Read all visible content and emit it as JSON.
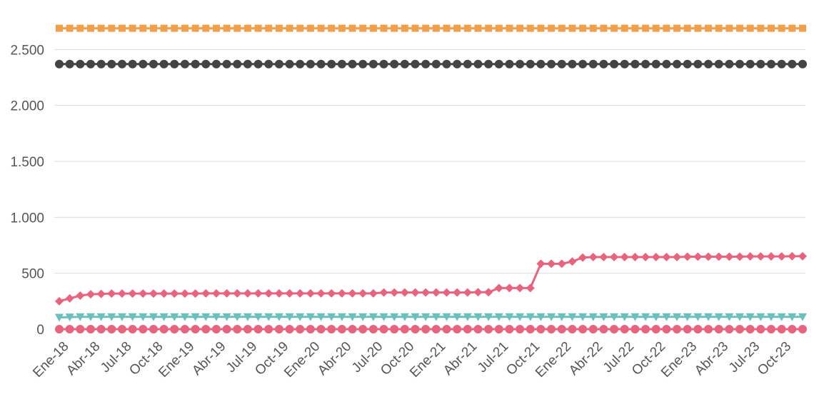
{
  "chart_data": {
    "type": "line",
    "title": "",
    "xlabel": "",
    "ylabel": "",
    "ylim": [
      0,
      2700
    ],
    "yticks": [
      0,
      500,
      1000,
      1500,
      2000,
      2500
    ],
    "ytick_labels": [
      "0",
      "500",
      "1.000",
      "1.500",
      "2.000",
      "2.500"
    ],
    "grid": true,
    "legend": "none",
    "x_start": "Ene-18",
    "x_labels": [
      "Ene-18",
      "Abr-18",
      "Jul-18",
      "Oct-18",
      "Ene-19",
      "Abr-19",
      "Jul-19",
      "Oct-19",
      "Ene-20",
      "Abr-20",
      "Jul-20",
      "Oct-20",
      "Ene-21",
      "Abr-21",
      "Jul-21",
      "Oct-21",
      "Ene-22",
      "Abr-22",
      "Jul-22",
      "Oct-22",
      "Ene-23",
      "Abr-23",
      "Jul-23",
      "Oct-23"
    ],
    "series": [
      {
        "color": "#F0A04B",
        "marker": "square",
        "values": [
          2690,
          2690,
          2690,
          2690,
          2690,
          2690,
          2690,
          2690,
          2690,
          2690,
          2690,
          2690,
          2690,
          2690,
          2690,
          2690,
          2690,
          2690,
          2690,
          2690,
          2690,
          2690,
          2690,
          2690,
          2690,
          2690,
          2690,
          2690,
          2690,
          2690,
          2690,
          2690,
          2690,
          2690,
          2690,
          2690,
          2690,
          2690,
          2690,
          2690,
          2690,
          2690,
          2690,
          2690,
          2690,
          2690,
          2690,
          2690,
          2690,
          2690,
          2690,
          2690,
          2690,
          2690,
          2690,
          2690,
          2690,
          2690,
          2690,
          2690,
          2690,
          2690,
          2690,
          2690,
          2690,
          2690,
          2690,
          2690,
          2690,
          2690,
          2690,
          2690
        ]
      },
      {
        "color": "#444444",
        "marker": "circle",
        "values": [
          2370,
          2370,
          2370,
          2370,
          2370,
          2370,
          2370,
          2370,
          2370,
          2370,
          2370,
          2370,
          2370,
          2370,
          2370,
          2370,
          2370,
          2370,
          2370,
          2370,
          2370,
          2370,
          2370,
          2370,
          2370,
          2370,
          2370,
          2370,
          2370,
          2370,
          2370,
          2370,
          2370,
          2370,
          2370,
          2370,
          2370,
          2370,
          2370,
          2370,
          2370,
          2370,
          2370,
          2370,
          2370,
          2370,
          2370,
          2370,
          2370,
          2370,
          2370,
          2370,
          2370,
          2370,
          2370,
          2370,
          2370,
          2370,
          2370,
          2370,
          2370,
          2370,
          2370,
          2370,
          2370,
          2370,
          2370,
          2370,
          2370,
          2370,
          2370,
          2370
        ]
      },
      {
        "color": "#E8647E",
        "marker": "diamond",
        "values": [
          250,
          275,
          300,
          312,
          315,
          318,
          318,
          318,
          318,
          318,
          318,
          318,
          318,
          318,
          320,
          320,
          320,
          320,
          320,
          320,
          320,
          320,
          320,
          320,
          320,
          320,
          320,
          320,
          320,
          320,
          320,
          328,
          328,
          328,
          328,
          328,
          328,
          328,
          328,
          328,
          330,
          330,
          368,
          368,
          368,
          368,
          585,
          585,
          585,
          605,
          640,
          645,
          645,
          645,
          645,
          645,
          645,
          645,
          645,
          645,
          648,
          648,
          648,
          648,
          648,
          648,
          650,
          650,
          650,
          650,
          652,
          652
        ]
      },
      {
        "color": "#6BBFBD",
        "marker": "triangle-down",
        "values": [
          105,
          108,
          110,
          110,
          110,
          110,
          110,
          110,
          110,
          110,
          110,
          110,
          110,
          110,
          110,
          110,
          110,
          110,
          110,
          110,
          110,
          110,
          110,
          110,
          110,
          110,
          110,
          110,
          110,
          110,
          110,
          110,
          110,
          110,
          110,
          110,
          110,
          110,
          110,
          110,
          110,
          110,
          110,
          110,
          110,
          110,
          110,
          110,
          110,
          110,
          110,
          110,
          110,
          110,
          110,
          110,
          110,
          110,
          110,
          110,
          110,
          110,
          110,
          110,
          110,
          110,
          110,
          110,
          110,
          110,
          110,
          110
        ]
      },
      {
        "color": "#E8647E",
        "marker": "circle",
        "values": [
          0,
          0,
          0,
          0,
          0,
          0,
          0,
          0,
          0,
          0,
          0,
          0,
          0,
          0,
          0,
          0,
          0,
          0,
          0,
          0,
          0,
          0,
          0,
          0,
          0,
          0,
          0,
          0,
          0,
          0,
          0,
          0,
          0,
          0,
          0,
          0,
          0,
          0,
          0,
          0,
          0,
          0,
          0,
          0,
          0,
          0,
          0,
          0,
          0,
          0,
          0,
          0,
          0,
          0,
          0,
          0,
          0,
          0,
          0,
          0,
          0,
          0,
          0,
          0,
          0,
          0,
          0,
          0,
          0,
          0,
          0,
          0
        ]
      }
    ]
  }
}
